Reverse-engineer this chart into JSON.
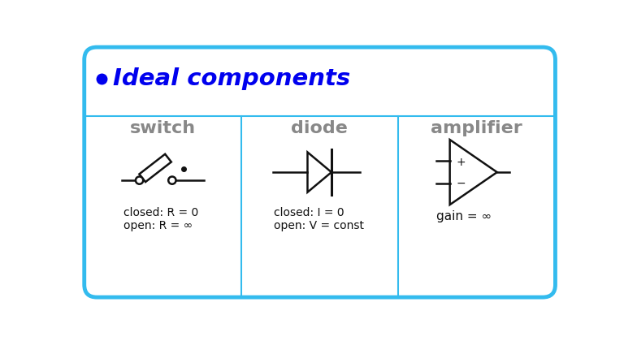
{
  "title": "Ideal components",
  "title_color": "#0000ee",
  "bullet_color": "#0000ee",
  "col_headers": [
    "switch",
    "diode",
    "amplifier"
  ],
  "header_color": "#888888",
  "switch_label1": "closed: R = 0",
  "switch_label2": "open: R = ∞",
  "diode_label1": "closed: I = 0",
  "diode_label2": "open: V = const",
  "amp_label": "gain = ∞",
  "border_color": "#33bbee",
  "bg_color": "#ffffff",
  "sym_color": "#111111",
  "border_lw": 3.5,
  "col_divider_lw": 1.5,
  "header_sep_lw": 1.5
}
